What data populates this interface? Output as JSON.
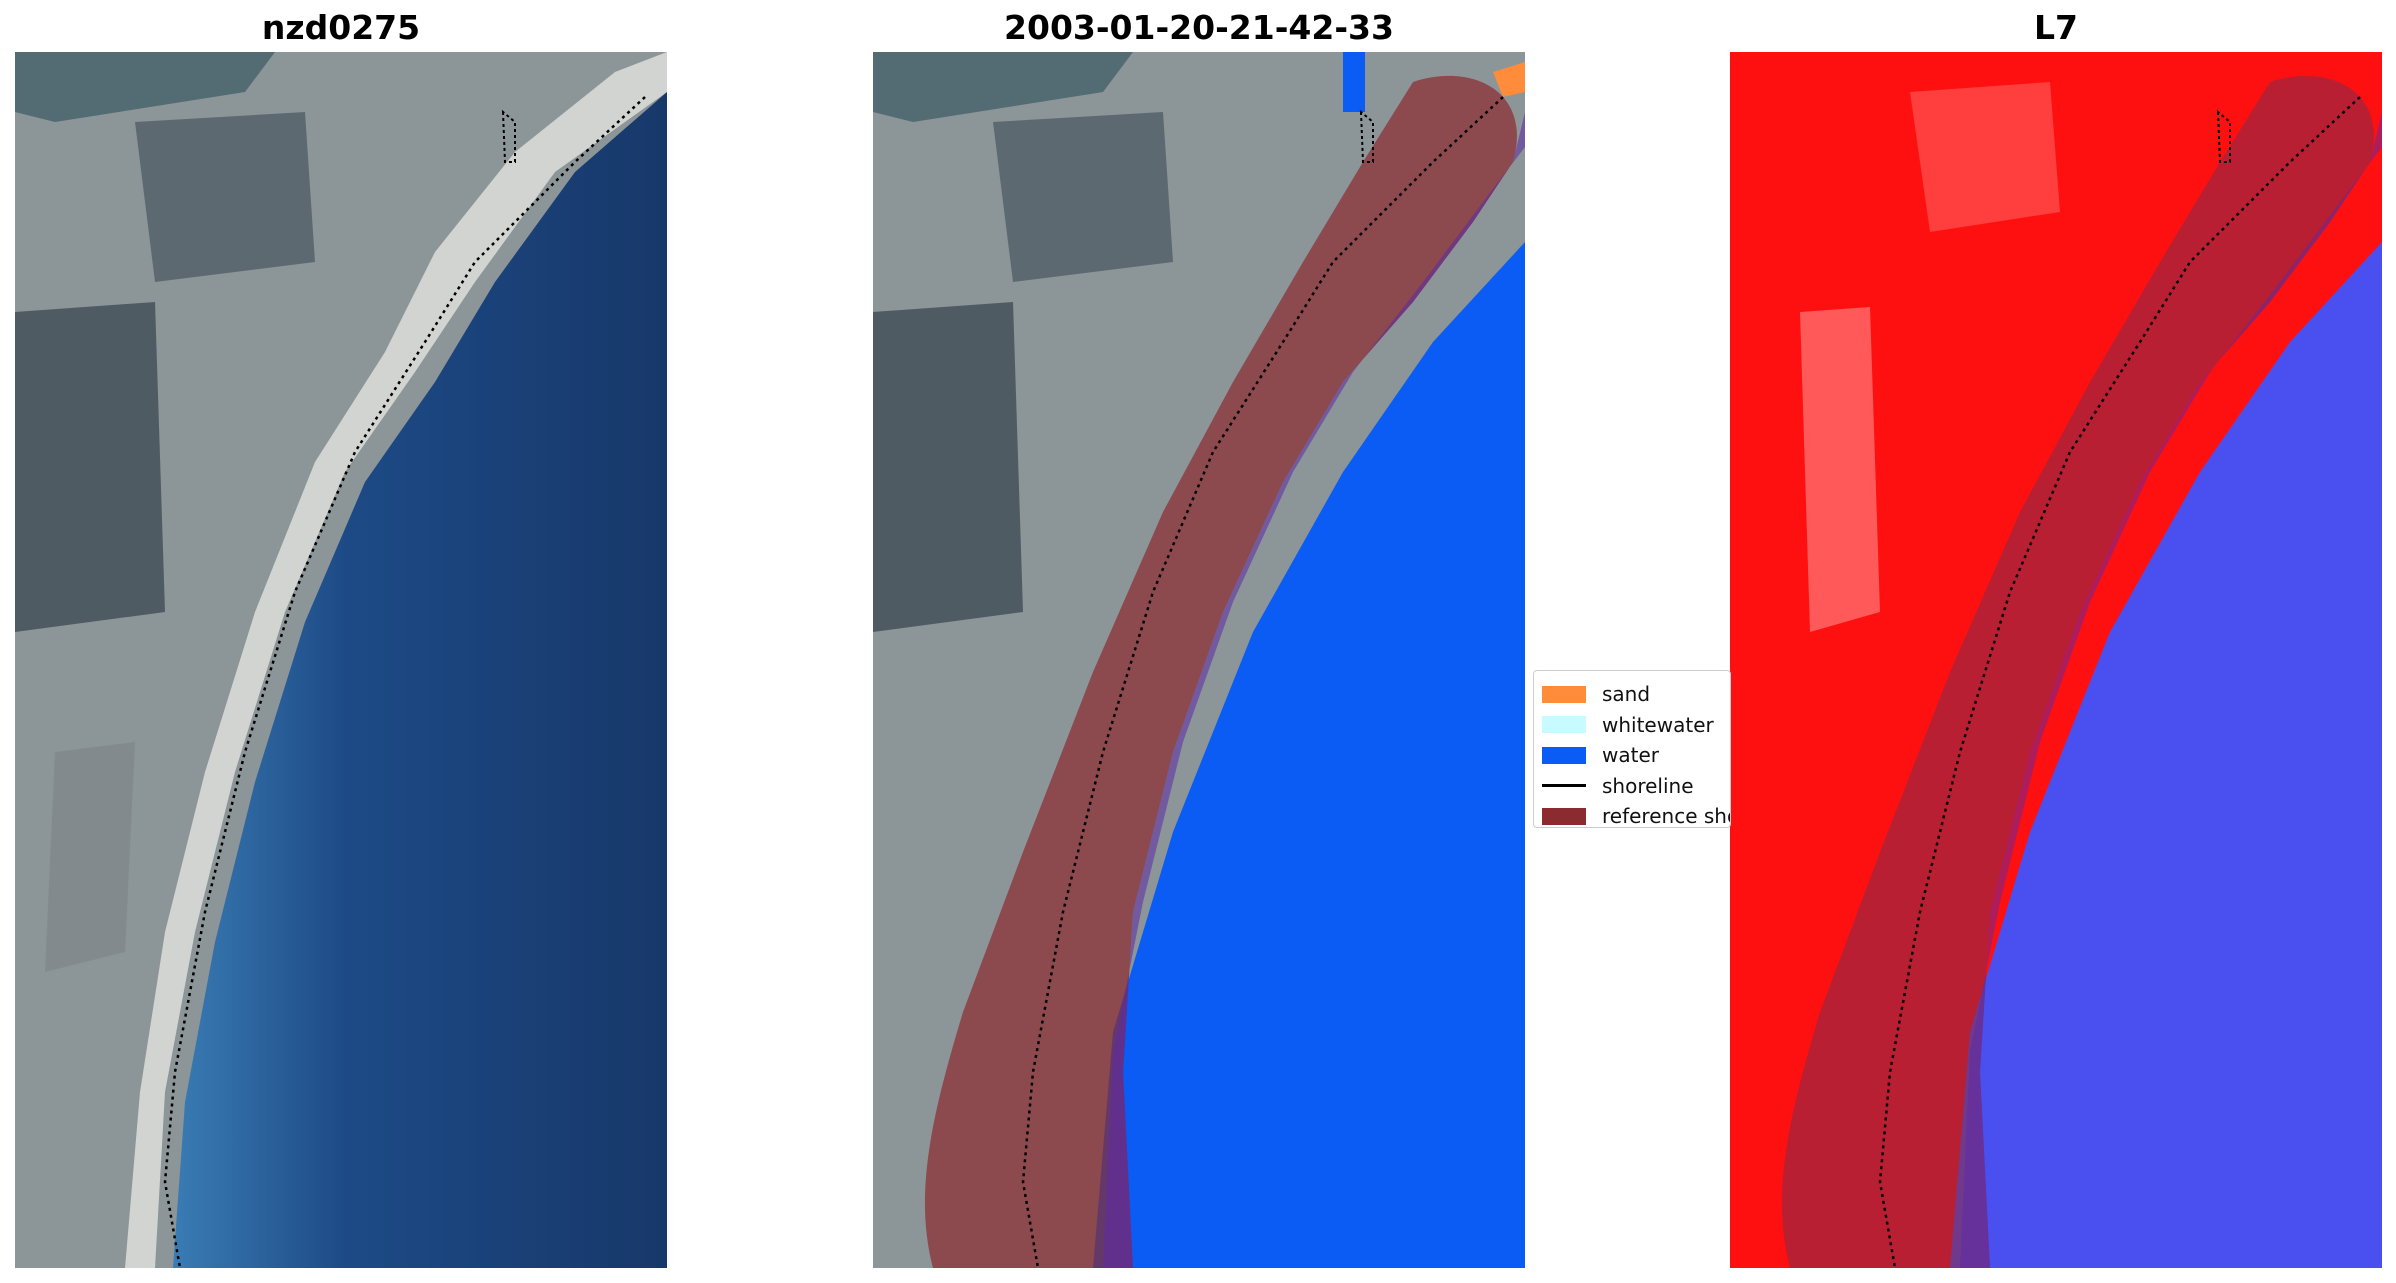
{
  "panels": [
    {
      "title": "nzd0275"
    },
    {
      "title": "2003-01-20-21-42-33"
    },
    {
      "title": "L7"
    }
  ],
  "legend": {
    "items": [
      {
        "label": "sand",
        "color": "#ff8c3a"
      },
      {
        "label": "whitewater",
        "color": "#c8fbff"
      },
      {
        "label": "water",
        "color": "#0a5cf5"
      },
      {
        "label": "shoreline",
        "color": "#000000"
      },
      {
        "label": "reference shoreline buffer",
        "color": "#8b2a2f"
      }
    ]
  },
  "colors": {
    "land": "#8a9396",
    "sea_deep": "#1c3f72",
    "sea_shallow": "#3e7fb5",
    "beach": "#e2e2dc",
    "buffer": "#8b2a2f",
    "water_class": "#0a5cf5",
    "nir_land": "#ff1010",
    "nir_water": "#4a50f0"
  }
}
